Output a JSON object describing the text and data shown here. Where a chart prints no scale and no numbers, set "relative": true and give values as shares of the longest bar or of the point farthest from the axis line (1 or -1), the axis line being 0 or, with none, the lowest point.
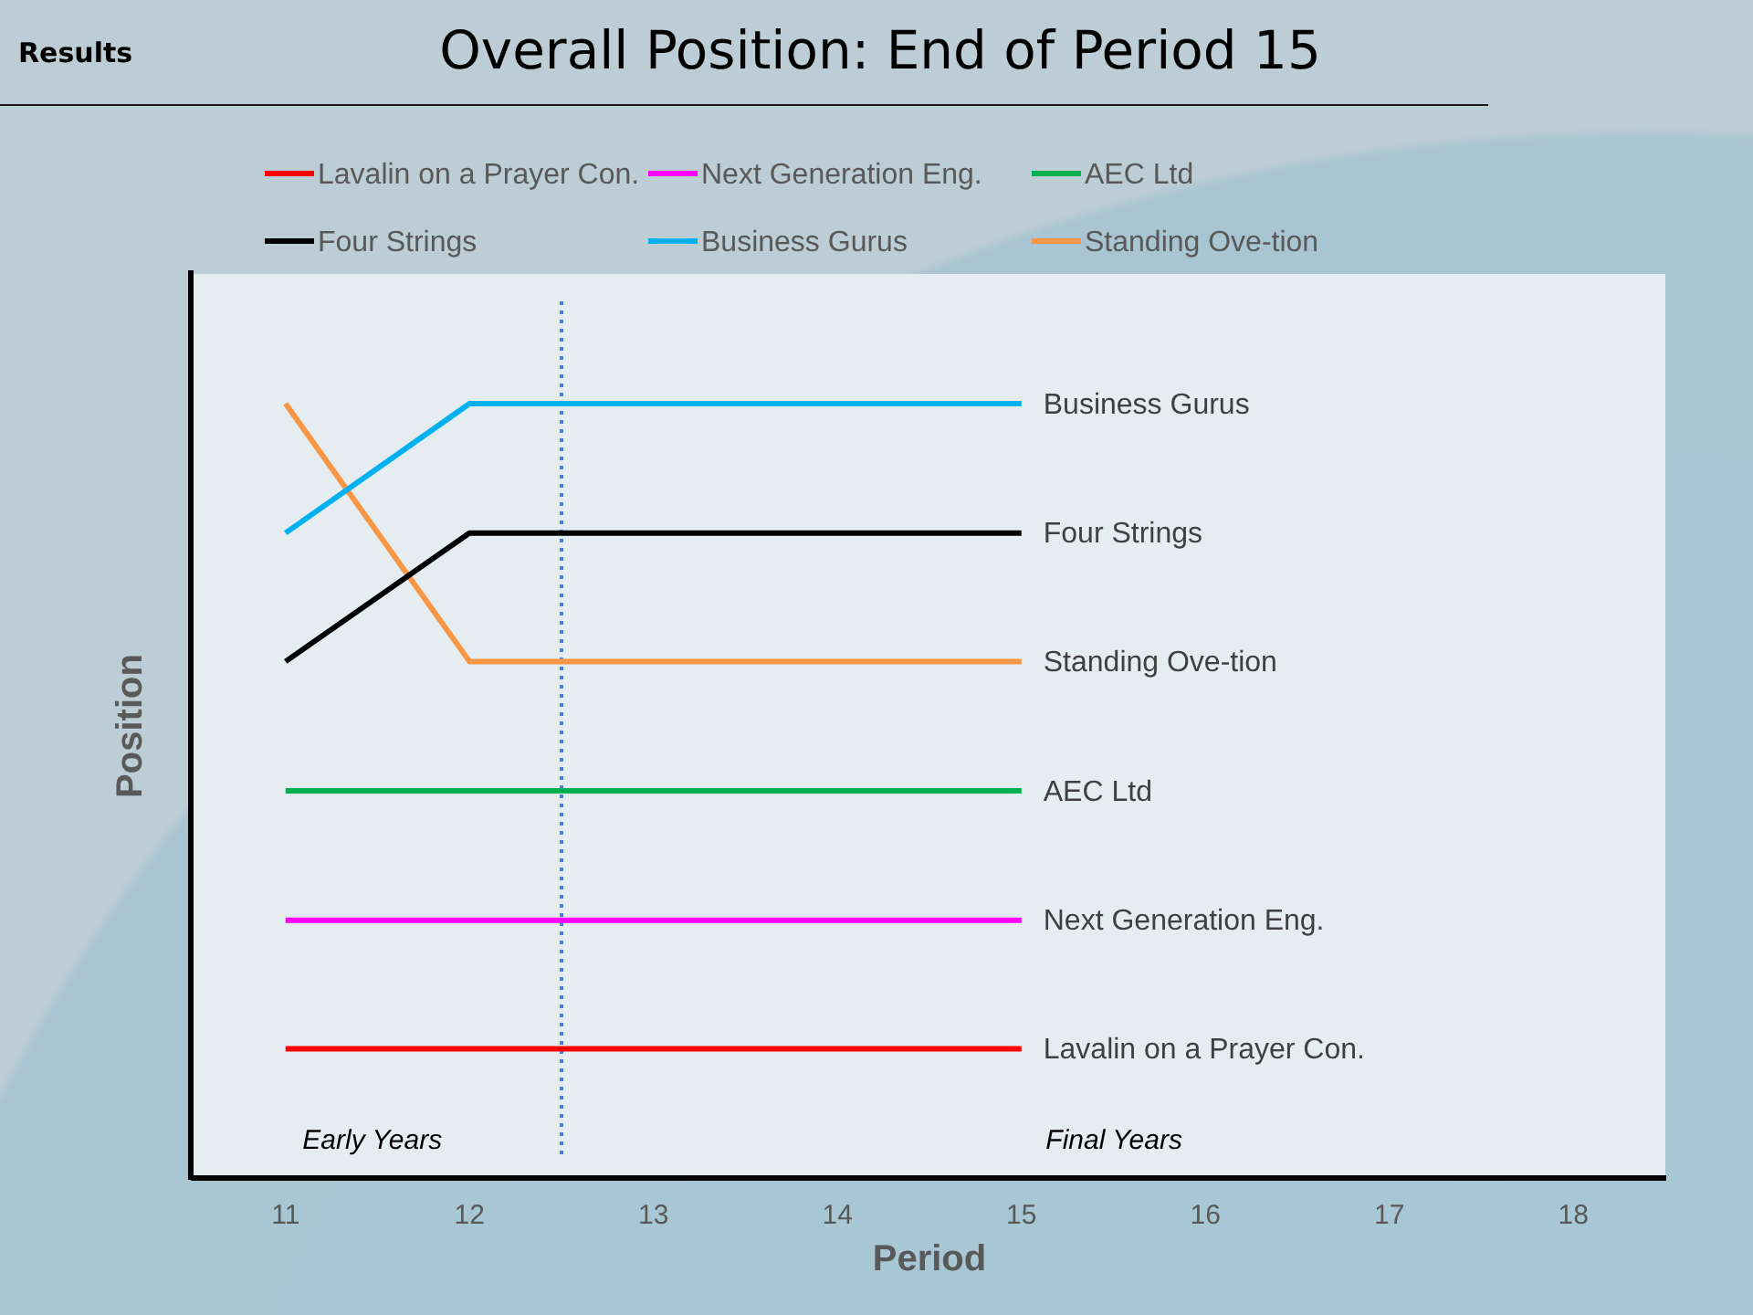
{
  "chart_data": {
    "type": "line",
    "title": "Overall Position: End of Period 15",
    "xlabel": "Period",
    "ylabel": "Position",
    "x": [
      11,
      12,
      13,
      14,
      15
    ],
    "xlim": [
      10.5,
      18.5
    ],
    "xticks": [
      11,
      12,
      13,
      14,
      15,
      16,
      17,
      18
    ],
    "relative": true,
    "series": [
      {
        "name": "Lavalin on a Prayer Con.",
        "color": "#ff0000",
        "values": [
          0.167,
          0.167,
          0.167,
          0.167,
          0.167
        ]
      },
      {
        "name": "Next Generation Eng.",
        "color": "#ff00ff",
        "values": [
          0.333,
          0.333,
          0.333,
          0.333,
          0.333
        ]
      },
      {
        "name": "AEC Ltd",
        "color": "#00b050",
        "values": [
          0.5,
          0.5,
          0.5,
          0.5,
          0.5
        ]
      },
      {
        "name": "Four Strings",
        "color": "#000000",
        "values": [
          0.667,
          0.833,
          0.833,
          0.833,
          0.833
        ]
      },
      {
        "name": "Business Gurus",
        "color": "#00b0f0",
        "values": [
          0.833,
          1,
          1,
          1,
          1
        ]
      },
      {
        "name": "Standing Ove-tion",
        "color": "#f79646",
        "values": [
          1,
          0.667,
          0.667,
          0.667,
          0.667
        ]
      }
    ],
    "ref_lines": [
      {
        "axis": "x",
        "value": 12.5,
        "color": "#4a7fd6",
        "line_style": "dotted"
      }
    ],
    "annotations": [
      "Results",
      "Early Years",
      "Final Years"
    ],
    "legend": "top"
  }
}
